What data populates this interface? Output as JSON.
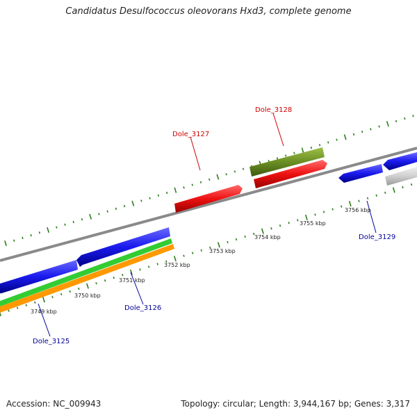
{
  "title": "Candidatus Desulfococcus oleovorans Hxd3, complete genome",
  "footer": {
    "accession": "Accession: NC_009943",
    "summary": "Topology: circular; Length: 3,944,167 bp; Genes: 3,317"
  },
  "colors": {
    "backbone": "#8a8a8a",
    "tick": "#2e7d1e",
    "red": "#ee1111",
    "blue": "#1a1aee",
    "olive": "#6b8e23",
    "gray_gene": "#c8c8c8",
    "green": "#33cc33",
    "orange": "#ff9900",
    "label_red": "#cc0000",
    "label_blue": "#000099"
  },
  "scale_labels": [
    "3749 kbp",
    "3750 kbp",
    "3751 kbp",
    "3752 kbp",
    "3753 kbp",
    "3754 kbp",
    "3755 kbp",
    "3756 kbp"
  ],
  "genes": [
    {
      "name": "Dole_3125",
      "color": "label_blue"
    },
    {
      "name": "Dole_3126",
      "color": "label_blue"
    },
    {
      "name": "Dole_3127",
      "color": "label_red"
    },
    {
      "name": "Dole_3128",
      "color": "label_red"
    },
    {
      "name": "Dole_3129",
      "color": "label_blue"
    }
  ]
}
